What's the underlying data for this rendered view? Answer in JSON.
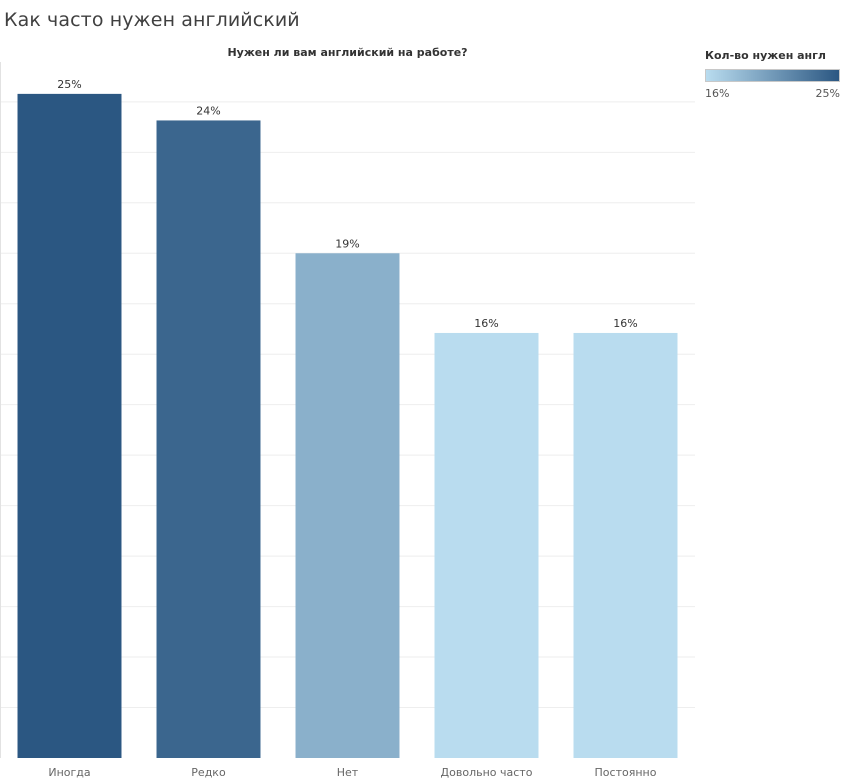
{
  "page": {
    "title": "Как часто нужен английский"
  },
  "legend": {
    "title": "Кол-во нужен англ",
    "min_label": "16%",
    "max_label": "25%"
  },
  "colors": {
    "low": "#b9dcef",
    "high": "#2b5782",
    "gridline": "#eeeeee",
    "axis_text": "#666666",
    "label_text": "#333333"
  },
  "chart_data": {
    "type": "bar",
    "title": "Нужен ли вам английский на работе?",
    "xlabel": "",
    "ylabel": "",
    "categories": [
      "Иногда",
      "Редко",
      "Нет",
      "Довольно часто",
      "Постоянно"
    ],
    "values": [
      25,
      24,
      19,
      16,
      16
    ],
    "data_labels": [
      "25%",
      "24%",
      "19%",
      "16%",
      "16%"
    ],
    "color_values": [
      25,
      24,
      19,
      16,
      16
    ],
    "color_range": [
      16,
      25
    ],
    "ylim": [
      0,
      26.2
    ],
    "y_tick_step": 1.9,
    "grid": true,
    "legend_position": "top-right"
  }
}
